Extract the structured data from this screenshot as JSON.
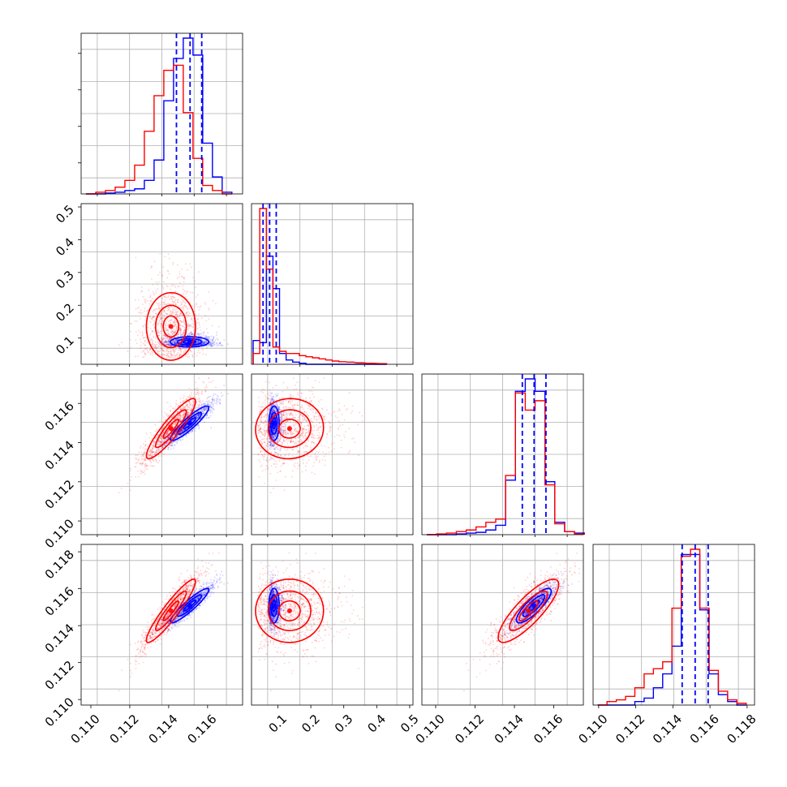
{
  "chart_data": {
    "type": "corner",
    "series": [
      {
        "color": "#0000ff"
      },
      {
        "color": "#ff0000"
      }
    ],
    "grid": true,
    "panels": [
      {
        "row": 0,
        "col": 0,
        "kind": "hist",
        "xlim": [
          0.1095,
          0.1178
        ],
        "x": [
          0.11,
          0.1105,
          0.111,
          0.1115,
          0.112,
          0.1125,
          0.113,
          0.1135,
          0.114,
          0.1145,
          0.115,
          0.1155,
          0.116,
          0.1165,
          0.117
        ],
        "series_values": [
          [
            0,
            0,
            0.005,
            0.01,
            0.02,
            0.03,
            0.08,
            0.2,
            0.55,
            0.8,
            0.92,
            0.82,
            0.3,
            0.1,
            0.01
          ],
          [
            0,
            0.01,
            0.02,
            0.04,
            0.08,
            0.17,
            0.37,
            0.58,
            0.73,
            0.76,
            0.48,
            0.21,
            0.05,
            0.02,
            0
          ]
        ],
        "quantile_lines": [
          0.1144,
          0.1151,
          0.1157
        ]
      },
      {
        "row": 1,
        "col": 0,
        "kind": "scatter",
        "xlim": [
          0.1095,
          0.1178
        ],
        "ylim": [
          0.02,
          0.51
        ],
        "yticks": [
          0.1,
          0.2,
          0.3,
          0.4,
          0.5
        ],
        "ytick_labels": [
          "0.1",
          "0.2",
          "0.3",
          "0.4",
          "0.5"
        ]
      },
      {
        "row": 1,
        "col": 1,
        "kind": "hist",
        "xlim": [
          0.02,
          0.51
        ],
        "x": [
          0.035,
          0.055,
          0.075,
          0.095,
          0.115,
          0.135,
          0.155,
          0.175,
          0.195,
          0.215,
          0.235,
          0.255,
          0.275,
          0.295,
          0.32,
          0.35,
          0.38,
          0.42
        ],
        "series_values": [
          [
            0.11,
            0.1,
            0.5,
            0.35,
            0.05,
            0.02,
            0.01,
            0.005,
            0,
            0,
            0,
            0,
            0,
            0,
            0,
            0,
            0,
            0
          ],
          [
            0.05,
            0.72,
            0.44,
            0.08,
            0.06,
            0.05,
            0.05,
            0.04,
            0.035,
            0.03,
            0.025,
            0.02,
            0.015,
            0.012,
            0.01,
            0.007,
            0.005,
            0.003
          ]
        ],
        "quantile_lines": [
          0.055,
          0.075,
          0.095
        ]
      },
      {
        "row": 2,
        "col": 0,
        "kind": "scatter",
        "xlim": [
          0.1095,
          0.1178
        ],
        "ylim": [
          0.1093,
          0.1175
        ],
        "yticks": [
          0.11,
          0.112,
          0.114,
          0.116
        ],
        "ytick_labels": [
          "0.110",
          "0.112",
          "0.114",
          "0.116"
        ]
      },
      {
        "row": 2,
        "col": 1,
        "kind": "scatter",
        "xlim": [
          0.02,
          0.51
        ],
        "ylim": [
          0.1093,
          0.1175
        ]
      },
      {
        "row": 2,
        "col": 2,
        "kind": "hist",
        "xlim": [
          0.1093,
          0.1175
        ],
        "x": [
          0.1098,
          0.1103,
          0.1108,
          0.1113,
          0.1118,
          0.1123,
          0.1128,
          0.1133,
          0.1138,
          0.1143,
          0.1148,
          0.1153,
          0.1158,
          0.1163,
          0.1168,
          0.1173
        ],
        "series_values": [
          [
            0,
            0,
            0,
            0.005,
            0.01,
            0.015,
            0.03,
            0.06,
            0.35,
            0.92,
            1.0,
            0.92,
            0.34,
            0.08,
            0.02,
            0.01
          ],
          [
            0,
            0.005,
            0.01,
            0.02,
            0.03,
            0.05,
            0.08,
            0.1,
            0.38,
            0.91,
            0.8,
            0.86,
            0.32,
            0.07,
            0.02,
            0.005
          ]
        ],
        "quantile_lines": [
          0.1144,
          0.115,
          0.1156
        ]
      },
      {
        "row": 3,
        "col": 0,
        "kind": "scatter",
        "xlim": [
          0.1095,
          0.1178
        ],
        "ylim": [
          0.1097,
          0.1184
        ],
        "yticks": [
          0.11,
          0.112,
          0.114,
          0.116,
          0.118
        ],
        "ytick_labels": [
          "0.110",
          "0.112",
          "0.114",
          "0.116",
          "0.118"
        ],
        "xticks": [
          0.11,
          0.112,
          0.114,
          0.116
        ],
        "xtick_labels": [
          "0.110",
          "0.112",
          "0.114",
          "0.116"
        ]
      },
      {
        "row": 3,
        "col": 1,
        "kind": "scatter",
        "xlim": [
          0.02,
          0.51
        ],
        "ylim": [
          0.1097,
          0.1184
        ],
        "xticks": [
          0.1,
          0.2,
          0.3,
          0.4,
          0.5
        ],
        "xtick_labels": [
          "0.1",
          "0.2",
          "0.3",
          "0.4",
          "0.5"
        ]
      },
      {
        "row": 3,
        "col": 2,
        "kind": "scatter",
        "xlim": [
          0.1093,
          0.1175
        ],
        "ylim": [
          0.1097,
          0.1184
        ],
        "xticks": [
          0.11,
          0.112,
          0.114,
          0.116
        ],
        "xtick_labels": [
          "0.110",
          "0.112",
          "0.114",
          "0.116"
        ]
      },
      {
        "row": 3,
        "col": 3,
        "kind": "hist",
        "xlim": [
          0.1097,
          0.1184
        ],
        "x": [
          0.1102,
          0.1107,
          0.1112,
          0.1117,
          0.1122,
          0.1127,
          0.1132,
          0.1137,
          0.1142,
          0.1147,
          0.1152,
          0.1157,
          0.1162,
          0.1167,
          0.1172,
          0.1177
        ],
        "series_values": [
          [
            0,
            0,
            0,
            0,
            0.02,
            0.04,
            0.1,
            0.18,
            0.34,
            0.87,
            0.87,
            0.55,
            0.18,
            0.06,
            0.02,
            0
          ],
          [
            0,
            0.02,
            0.03,
            0.05,
            0.1,
            0.18,
            0.21,
            0.25,
            0.56,
            0.86,
            0.9,
            0.56,
            0.2,
            0.08,
            0.03,
            0.01
          ]
        ],
        "quantile_lines": [
          0.1145,
          0.1152,
          0.1159
        ],
        "xticks": [
          0.11,
          0.112,
          0.114,
          0.116,
          0.118
        ],
        "xtick_labels": [
          "0.110",
          "0.112",
          "0.114",
          "0.116",
          "0.118"
        ]
      }
    ]
  }
}
